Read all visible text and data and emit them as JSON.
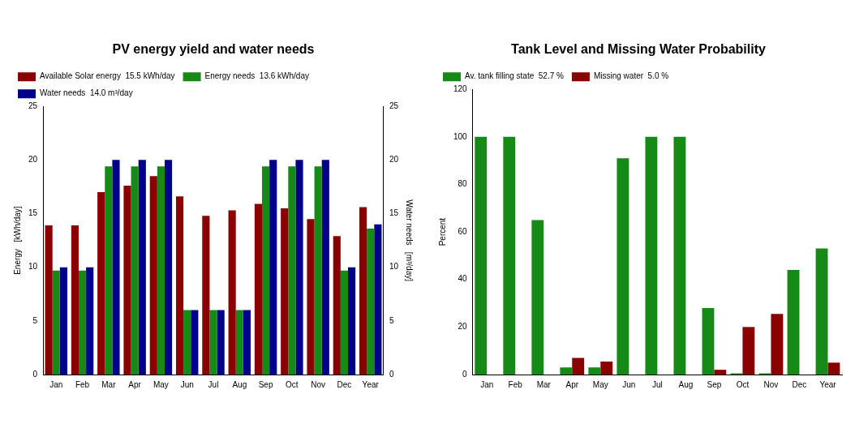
{
  "chart_data": [
    {
      "type": "bar",
      "title": "PV energy yield and water needs",
      "ylabel": "Energy   [kWh/day]",
      "y2label": "Water needs   [m³/day]",
      "categories": [
        "Jan",
        "Feb",
        "Mar",
        "Apr",
        "May",
        "Jun",
        "Jul",
        "Aug",
        "Sep",
        "Oct",
        "Nov",
        "Dec",
        "Year"
      ],
      "series": [
        {
          "name": "Available Solar energy  15.5 kWh/day",
          "color": "#8b0000",
          "values": [
            13.9,
            13.9,
            17,
            17.6,
            18.5,
            16.6,
            14.8,
            15.3,
            15.9,
            15.5,
            14.5,
            12.9,
            15.6
          ]
        },
        {
          "name": "Energy needs  13.6 kWh/day",
          "color": "#168a16",
          "values": [
            9.7,
            9.7,
            19.4,
            19.4,
            19.4,
            6,
            6,
            6,
            19.4,
            19.4,
            19.4,
            9.7,
            13.6
          ]
        },
        {
          "name": "Water needs  14.0 m³/day",
          "color": "#00008b",
          "axis": "y2",
          "values": [
            10,
            10,
            20,
            20,
            20,
            6,
            6,
            6,
            20,
            20,
            20,
            10,
            14
          ]
        }
      ],
      "ylim": [
        0,
        25
      ],
      "yticks": [
        0,
        5,
        10,
        15,
        20,
        25
      ],
      "y2lim": [
        0,
        25
      ],
      "y2ticks": [
        0,
        5,
        10,
        15,
        20,
        25
      ],
      "legend": "top left"
    },
    {
      "type": "bar",
      "title": "Tank Level and Missing Water Probability",
      "ylabel": "Percent",
      "categories": [
        "Jan",
        "Feb",
        "Mar",
        "Apr",
        "May",
        "Jun",
        "Jul",
        "Aug",
        "Sep",
        "Oct",
        "Nov",
        "Dec",
        "Year"
      ],
      "series": [
        {
          "name": "Av. tank filling state  52.7 %",
          "color": "#168a16",
          "values": [
            100,
            100,
            65,
            3,
            3,
            91,
            100,
            100,
            28,
            0.5,
            0.5,
            44,
            53
          ]
        },
        {
          "name": "Missing water  5.0 %",
          "color": "#8b0000",
          "values": [
            0,
            0,
            0,
            7,
            5.5,
            0,
            0,
            0,
            2,
            20,
            25.5,
            0,
            5
          ]
        }
      ],
      "ylim": [
        0,
        120
      ],
      "yticks": [
        0,
        20,
        40,
        60,
        80,
        100,
        120
      ],
      "legend": "top left"
    }
  ]
}
